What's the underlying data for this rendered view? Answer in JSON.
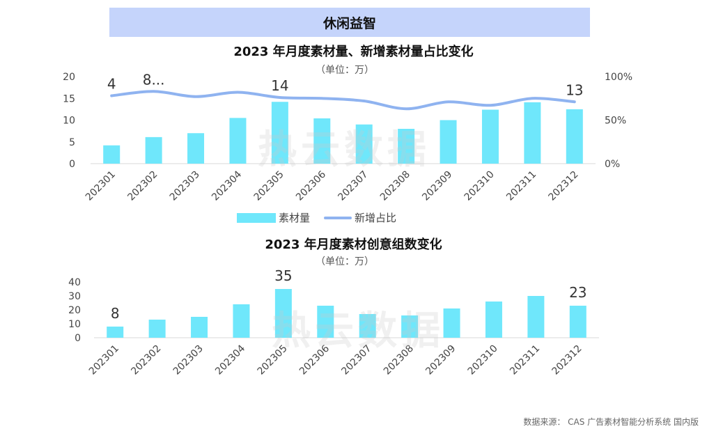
{
  "banner": "休闲益智",
  "watermark": "热云数据",
  "source": "数据来源： CAS 广告素材智能分析系统 国内版",
  "colors": {
    "bar": "#6fe7fb",
    "line": "#8fb3f0",
    "banner": "#c5d4fb"
  },
  "chart_data": [
    {
      "type": "bar+line",
      "title": "2023 年月度素材量、新增素材量占比变化",
      "unit": "（单位：万）",
      "categories": [
        "202301",
        "202302",
        "202303",
        "202304",
        "202305",
        "202306",
        "202307",
        "202308",
        "202309",
        "202310",
        "202311",
        "202312"
      ],
      "series": [
        {
          "name": "素材量",
          "type": "bar",
          "axis": "left",
          "values": [
            4.2,
            6.1,
            7.0,
            10.5,
            14.2,
            10.4,
            9.0,
            8.0,
            10.0,
            12.4,
            14.1,
            12.5
          ]
        },
        {
          "name": "新增占比",
          "type": "line",
          "axis": "right",
          "values": [
            78,
            83,
            77,
            82,
            76,
            75,
            72,
            63,
            71,
            67,
            75,
            71
          ]
        }
      ],
      "data_labels": [
        {
          "index": 0,
          "text": "4"
        },
        {
          "index": 1,
          "text": "8..."
        },
        {
          "index": 4,
          "text": "14"
        },
        {
          "index": 11,
          "text": "13"
        }
      ],
      "yleft": {
        "min": 0,
        "max": 20,
        "ticks": [
          "0",
          "5",
          "10",
          "15",
          "20"
        ]
      },
      "yright": {
        "min": 0,
        "max": 100,
        "ticks": [
          "0%",
          "50%",
          "100%"
        ]
      },
      "legend": "bottom"
    },
    {
      "type": "bar",
      "title": "2023 年月度素材创意组数变化",
      "unit": "（单位：万）",
      "categories": [
        "202301",
        "202302",
        "202303",
        "202304",
        "202305",
        "202306",
        "202307",
        "202308",
        "202309",
        "202310",
        "202311",
        "202312"
      ],
      "values": [
        8,
        13,
        15,
        24,
        35,
        23,
        17,
        16,
        21,
        26,
        30,
        23
      ],
      "data_labels": [
        {
          "index": 0,
          "text": "8"
        },
        {
          "index": 4,
          "text": "35"
        },
        {
          "index": 11,
          "text": "23"
        }
      ],
      "ylim": [
        0,
        40
      ],
      "ticks": [
        "0",
        "10",
        "20",
        "30",
        "40"
      ]
    }
  ]
}
